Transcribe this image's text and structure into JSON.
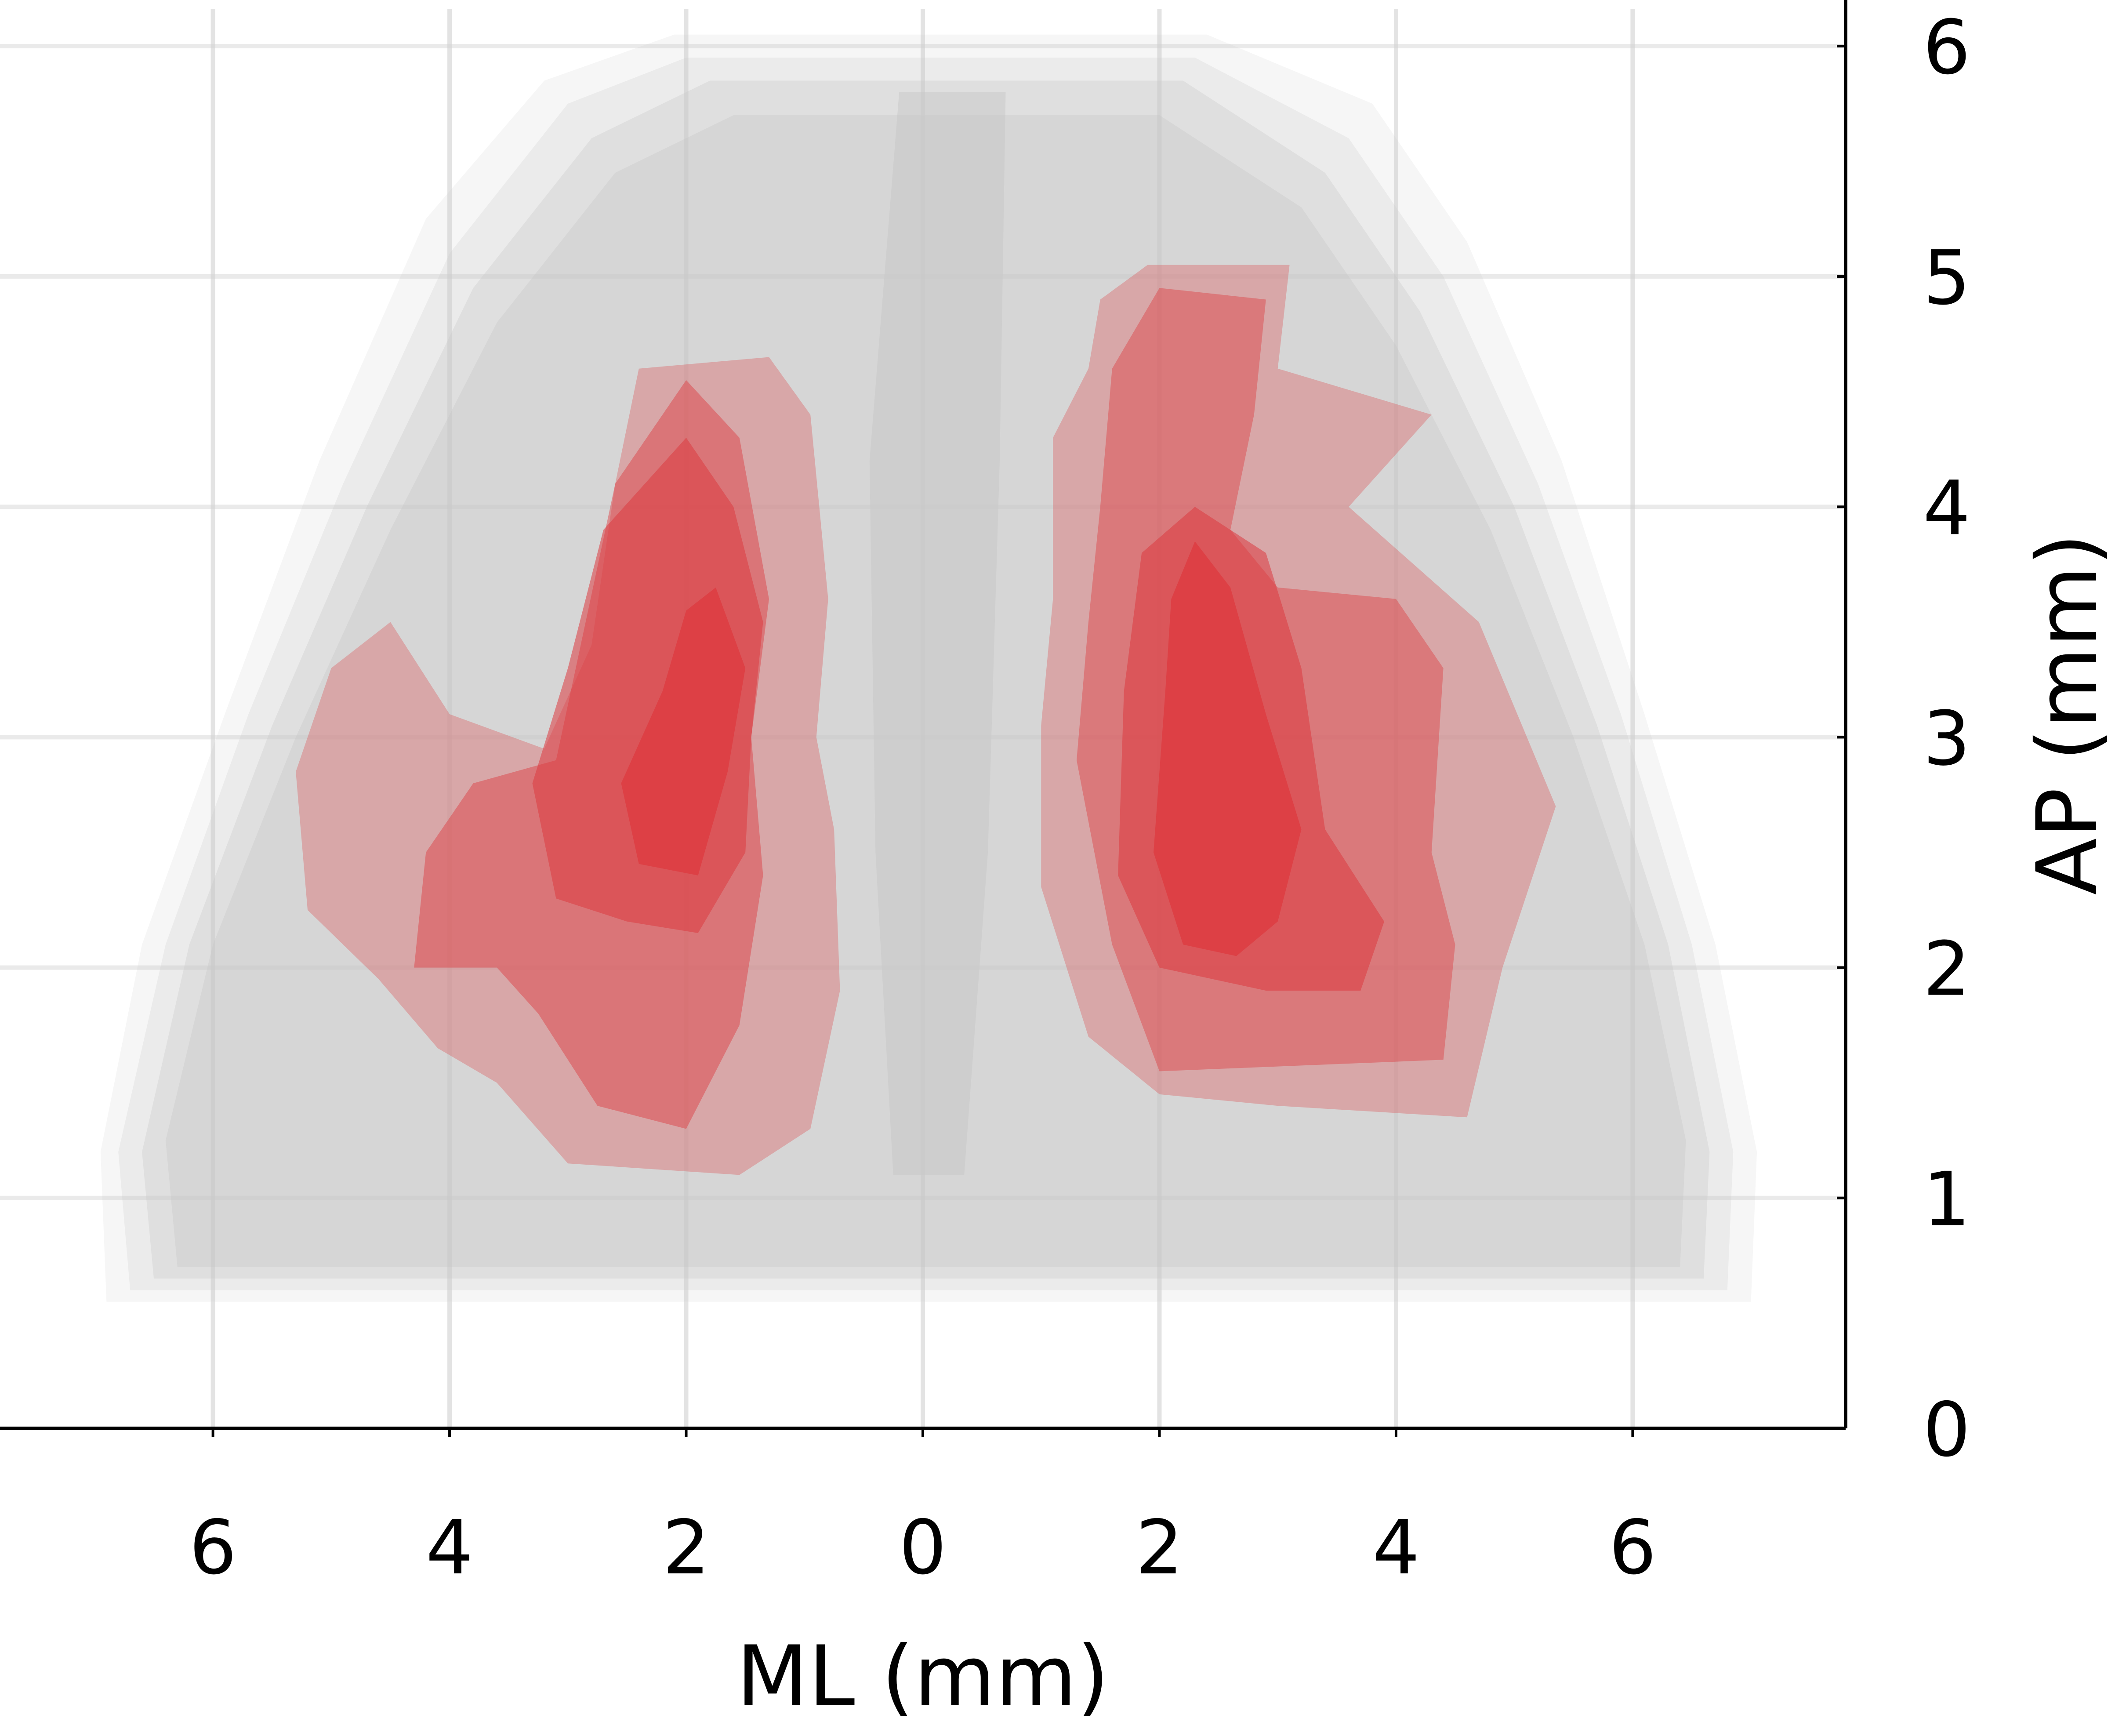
{
  "chart_data": {
    "type": "area",
    "title": "",
    "xlabel": "ML (mm)",
    "ylabel": "AP (mm)",
    "x_axis": {
      "range": [
        -7.8,
        7.8
      ],
      "ticks": [
        -6,
        -4,
        -2,
        0,
        2,
        4,
        6
      ],
      "tick_labels": [
        "6",
        "4",
        "2",
        "0",
        "2",
        "4",
        "6"
      ]
    },
    "y_axis": {
      "position": "right",
      "range": [
        0,
        6.2
      ],
      "ticks": [
        0,
        1,
        2,
        3,
        4,
        5,
        6
      ],
      "tick_labels": [
        "0",
        "1",
        "2",
        "3",
        "4",
        "5",
        "6"
      ]
    },
    "grid": true,
    "legend": "none",
    "colors": {
      "outline": "#c8c8c8",
      "region": "#dd3a3f",
      "axis": "#000000"
    },
    "series": [
      {
        "kind": "outline",
        "layers": [
          {
            "opacity": 0.16,
            "polygon": [
              [
                -6.9,
                0.55
              ],
              [
                -6.95,
                1.2
              ],
              [
                -6.6,
                2.1
              ],
              [
                -5.9,
                3.1
              ],
              [
                -5.1,
                4.2
              ],
              [
                -4.2,
                5.25
              ],
              [
                -3.2,
                5.85
              ],
              [
                -2.1,
                6.05
              ],
              [
                2.4,
                6.05
              ],
              [
                3.8,
                5.75
              ],
              [
                4.6,
                5.15
              ],
              [
                5.4,
                4.2
              ],
              [
                6.1,
                3.1
              ],
              [
                6.7,
                2.1
              ],
              [
                7.05,
                1.2
              ],
              [
                7.0,
                0.55
              ]
            ]
          },
          {
            "opacity": 0.24,
            "polygon": [
              [
                -6.7,
                0.6
              ],
              [
                -6.8,
                1.2
              ],
              [
                -6.4,
                2.1
              ],
              [
                -5.7,
                3.1
              ],
              [
                -4.9,
                4.1
              ],
              [
                -4.0,
                5.1
              ],
              [
                -3.0,
                5.75
              ],
              [
                -2.0,
                5.95
              ],
              [
                2.3,
                5.95
              ],
              [
                3.6,
                5.6
              ],
              [
                4.4,
                5.0
              ],
              [
                5.2,
                4.1
              ],
              [
                5.9,
                3.1
              ],
              [
                6.5,
                2.1
              ],
              [
                6.85,
                1.2
              ],
              [
                6.8,
                0.6
              ]
            ]
          },
          {
            "opacity": 0.32,
            "polygon": [
              [
                -6.5,
                0.65
              ],
              [
                -6.6,
                1.2
              ],
              [
                -6.2,
                2.1
              ],
              [
                -5.5,
                3.05
              ],
              [
                -4.7,
                4.0
              ],
              [
                -3.8,
                4.95
              ],
              [
                -2.8,
                5.6
              ],
              [
                -1.8,
                5.85
              ],
              [
                2.2,
                5.85
              ],
              [
                3.4,
                5.45
              ],
              [
                4.2,
                4.85
              ],
              [
                5.0,
                4.0
              ],
              [
                5.7,
                3.05
              ],
              [
                6.3,
                2.1
              ],
              [
                6.65,
                1.2
              ],
              [
                6.6,
                0.65
              ]
            ]
          },
          {
            "opacity": 0.4,
            "polygon": [
              [
                -6.3,
                0.7
              ],
              [
                -6.4,
                1.25
              ],
              [
                -6.0,
                2.1
              ],
              [
                -5.3,
                3.0
              ],
              [
                -4.5,
                3.9
              ],
              [
                -3.6,
                4.8
              ],
              [
                -2.6,
                5.45
              ],
              [
                -1.6,
                5.7
              ],
              [
                2.0,
                5.7
              ],
              [
                3.2,
                5.3
              ],
              [
                4.0,
                4.7
              ],
              [
                4.8,
                3.9
              ],
              [
                5.5,
                3.0
              ],
              [
                6.1,
                2.1
              ],
              [
                6.45,
                1.25
              ],
              [
                6.4,
                0.7
              ]
            ]
          },
          {
            "opacity": 0.55,
            "polygon": [
              [
                -0.25,
                1.1
              ],
              [
                0.35,
                1.1
              ],
              [
                0.55,
                2.5
              ],
              [
                0.65,
                4.2
              ],
              [
                0.7,
                5.8
              ],
              [
                -0.2,
                5.8
              ],
              [
                -0.45,
                4.2
              ],
              [
                -0.4,
                2.5
              ]
            ]
          }
        ]
      },
      {
        "name": "",
        "kind": "region",
        "layers": [
          {
            "opacity": 0.3,
            "polygon": [
              [
                -1.3,
                4.65
              ],
              [
                -0.95,
                4.4
              ],
              [
                -0.8,
                3.6
              ],
              [
                -0.9,
                3.0
              ],
              [
                -0.75,
                2.6
              ],
              [
                -0.7,
                1.9
              ],
              [
                -0.95,
                1.3
              ],
              [
                -1.55,
                1.1
              ],
              [
                -3.0,
                1.15
              ],
              [
                -3.6,
                1.5
              ],
              [
                -4.1,
                1.65
              ],
              [
                -4.6,
                1.95
              ],
              [
                -5.2,
                2.25
              ],
              [
                -5.3,
                2.85
              ],
              [
                -5.0,
                3.3
              ],
              [
                -4.5,
                3.5
              ],
              [
                -4.0,
                3.1
              ],
              [
                -3.2,
                2.95
              ],
              [
                -2.8,
                3.4
              ],
              [
                -2.6,
                4.1
              ],
              [
                -2.4,
                4.6
              ]
            ]
          },
          {
            "opacity": 0.45,
            "polygon": [
              [
                -2.0,
                4.55
              ],
              [
                -1.55,
                4.3
              ],
              [
                -1.3,
                3.6
              ],
              [
                -1.45,
                3.0
              ],
              [
                -1.35,
                2.4
              ],
              [
                -1.55,
                1.75
              ],
              [
                -2.0,
                1.3
              ],
              [
                -2.75,
                1.4
              ],
              [
                -3.25,
                1.8
              ],
              [
                -3.6,
                2.0
              ],
              [
                -4.3,
                2.0
              ],
              [
                -4.2,
                2.5
              ],
              [
                -3.8,
                2.8
              ],
              [
                -3.1,
                2.9
              ],
              [
                -2.85,
                3.5
              ],
              [
                -2.6,
                4.1
              ]
            ]
          },
          {
            "opacity": 0.55,
            "polygon": [
              [
                -2.0,
                4.3
              ],
              [
                -1.6,
                4.0
              ],
              [
                -1.35,
                3.5
              ],
              [
                -1.45,
                3.0
              ],
              [
                -1.5,
                2.5
              ],
              [
                -1.9,
                2.15
              ],
              [
                -2.5,
                2.2
              ],
              [
                -3.1,
                2.3
              ],
              [
                -3.3,
                2.8
              ],
              [
                -3.0,
                3.3
              ],
              [
                -2.7,
                3.9
              ]
            ]
          },
          {
            "opacity": 0.75,
            "polygon": [
              [
                -1.75,
                3.65
              ],
              [
                -1.5,
                3.3
              ],
              [
                -1.65,
                2.85
              ],
              [
                -1.9,
                2.4
              ],
              [
                -2.4,
                2.45
              ],
              [
                -2.55,
                2.8
              ],
              [
                -2.2,
                3.2
              ],
              [
                -2.0,
                3.55
              ]
            ]
          },
          {
            "opacity": 0.3,
            "polygon": [
              [
                1.9,
                5.05
              ],
              [
                3.1,
                5.05
              ],
              [
                3.0,
                4.6
              ],
              [
                4.3,
                4.4
              ],
              [
                3.6,
                4.0
              ],
              [
                4.7,
                3.5
              ],
              [
                5.35,
                2.7
              ],
              [
                4.9,
                2.0
              ],
              [
                4.6,
                1.35
              ],
              [
                3.0,
                1.4
              ],
              [
                2.0,
                1.45
              ],
              [
                1.4,
                1.7
              ],
              [
                1.0,
                2.35
              ],
              [
                1.0,
                3.05
              ],
              [
                1.1,
                3.6
              ],
              [
                1.1,
                4.3
              ],
              [
                1.4,
                4.6
              ],
              [
                1.5,
                4.9
              ]
            ]
          },
          {
            "opacity": 0.42,
            "polygon": [
              [
                2.0,
                4.95
              ],
              [
                2.9,
                4.9
              ],
              [
                2.8,
                4.4
              ],
              [
                2.6,
                3.9
              ],
              [
                3.0,
                3.65
              ],
              [
                4.0,
                3.6
              ],
              [
                4.4,
                3.3
              ],
              [
                4.3,
                2.5
              ],
              [
                4.5,
                2.1
              ],
              [
                4.4,
                1.6
              ],
              [
                2.0,
                1.55
              ],
              [
                1.6,
                2.1
              ],
              [
                1.3,
                2.9
              ],
              [
                1.4,
                3.5
              ],
              [
                1.5,
                4.0
              ],
              [
                1.6,
                4.6
              ]
            ]
          },
          {
            "opacity": 0.55,
            "polygon": [
              [
                2.3,
                4.0
              ],
              [
                2.9,
                3.8
              ],
              [
                3.2,
                3.3
              ],
              [
                3.4,
                2.6
              ],
              [
                3.9,
                2.2
              ],
              [
                3.7,
                1.9
              ],
              [
                2.9,
                1.9
              ],
              [
                2.0,
                2.0
              ],
              [
                1.65,
                2.4
              ],
              [
                1.7,
                3.2
              ],
              [
                1.85,
                3.8
              ]
            ]
          },
          {
            "opacity": 0.75,
            "polygon": [
              [
                2.3,
                3.85
              ],
              [
                2.6,
                3.65
              ],
              [
                2.9,
                3.1
              ],
              [
                3.2,
                2.6
              ],
              [
                3.0,
                2.2
              ],
              [
                2.65,
                2.05
              ],
              [
                2.2,
                2.1
              ],
              [
                1.95,
                2.5
              ],
              [
                2.05,
                3.2
              ],
              [
                2.1,
                3.6
              ]
            ]
          }
        ]
      }
    ]
  }
}
